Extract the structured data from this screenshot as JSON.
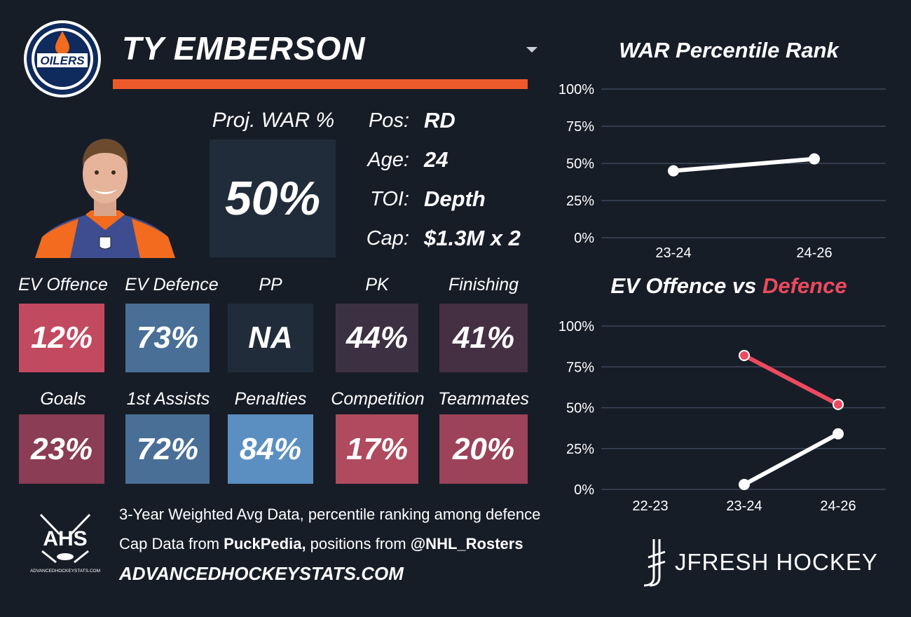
{
  "player": {
    "name": "TY EMBERSON",
    "team_logo_text": "OILERS"
  },
  "proj_war": {
    "label": "Proj. WAR %",
    "value": "50%"
  },
  "info": [
    {
      "label": "Pos:",
      "value": "RD"
    },
    {
      "label": "Age:",
      "value": "24"
    },
    {
      "label": "TOI:",
      "value": "Depth"
    },
    {
      "label": "Cap:",
      "value": "$1.3M x 2"
    }
  ],
  "stats_row1": [
    {
      "label": "EV Offence",
      "value": "12%",
      "color": "#c24a60"
    },
    {
      "label": "EV Defence",
      "value": "73%",
      "color": "#4a6f96"
    },
    {
      "label": "PP",
      "value": "NA",
      "color": "#212c3a"
    },
    {
      "label": "PK",
      "value": "44%",
      "color": "#3c3143"
    },
    {
      "label": "Finishing",
      "value": "41%",
      "color": "#452f43"
    }
  ],
  "stats_row2": [
    {
      "label": "Goals",
      "value": "23%",
      "color": "#8a3d54"
    },
    {
      "label": "1st Assists",
      "value": "72%",
      "color": "#4a6f96"
    },
    {
      "label": "Penalties",
      "value": "84%",
      "color": "#5b8fc1"
    },
    {
      "label": "Competition",
      "value": "17%",
      "color": "#b04a5e"
    },
    {
      "label": "Teammates",
      "value": "20%",
      "color": "#9c4259"
    }
  ],
  "footer": {
    "ahs_text": "AHS",
    "ahs_small": "ADVANCEDHOCKEYSTATS.COM",
    "line1": "3-Year Weighted Avg Data, percentile ranking among defence",
    "line2_pre": "Cap Data from ",
    "line2_bold1": "PuckPedia,",
    "line2_mid": " positions from ",
    "line2_bold2": "@NHL_Rosters",
    "site": "ADVANCEDHOCKEYSTATS.COM",
    "jfresh": "JFRESH HOCKEY"
  },
  "colors": {
    "accent": "#ec5a2c",
    "offence_line": "#ffffff",
    "defence_line": "#ec4a5f",
    "grid": "#3a4658"
  },
  "chart_data": [
    {
      "type": "line",
      "title": "WAR Percentile Rank",
      "categories": [
        "23-24",
        "24-26"
      ],
      "series": [
        {
          "values": [
            45,
            53
          ]
        }
      ],
      "yticks": [
        "0%",
        "25%",
        "50%",
        "75%",
        "100%"
      ],
      "ylim": [
        0,
        100
      ]
    },
    {
      "type": "line",
      "title_part1": "EV Offence vs ",
      "title_part2": "Defence",
      "categories": [
        "22-23",
        "23-24",
        "24-26"
      ],
      "series": [
        {
          "name": "EV Offence",
          "values": [
            null,
            3,
            34
          ]
        },
        {
          "name": "Defence",
          "values": [
            null,
            82,
            52
          ]
        }
      ],
      "yticks": [
        "0%",
        "25%",
        "50%",
        "75%",
        "100%"
      ],
      "ylim": [
        0,
        100
      ]
    }
  ]
}
